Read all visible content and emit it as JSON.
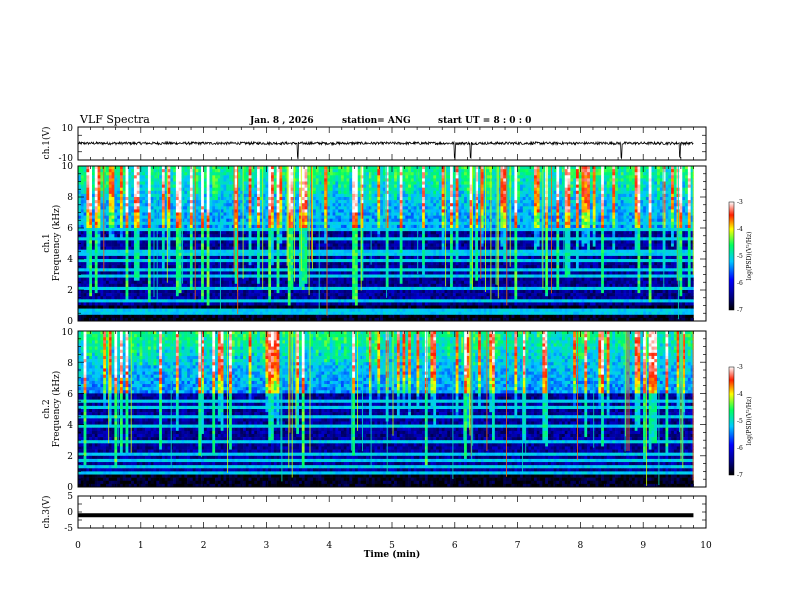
{
  "chart_data": {
    "type": "heatmap",
    "title": "VLF Spectra",
    "header": {
      "date": "Jan. 8 , 2026",
      "station": "station= ANG",
      "start": "start  UT =  8 : 0  : 0"
    },
    "xlabel": "Time  (min)",
    "xlim": [
      0,
      10
    ],
    "x_ticks": [
      "0",
      "1",
      "2",
      "3",
      "4",
      "5",
      "6",
      "7",
      "8",
      "9",
      "10"
    ],
    "panels": [
      {
        "id": "ch1-voltage",
        "ylabel": "ch.1(V)",
        "ylim": [
          -10,
          10
        ],
        "y_ticks": [
          "10",
          "-10"
        ],
        "level": 0.15
      },
      {
        "id": "ch1-spectrogram",
        "ylabel_1": "ch.1",
        "ylabel_2": "Frequency  (kHz)",
        "ylim": [
          0,
          10
        ],
        "y_ticks": [
          "0",
          "2",
          "4",
          "6",
          "8",
          "10"
        ],
        "colorbar": {
          "label": "log(PSD)(V²/Hz)",
          "range": [
            -7,
            -3
          ],
          "ticks": [
            "-3",
            "-4",
            "-5",
            "-6",
            "-7"
          ]
        }
      },
      {
        "id": "ch2-spectrogram",
        "ylabel_1": "ch.2",
        "ylabel_2": "Frequency  (kHz)",
        "ylim": [
          0,
          10
        ],
        "y_ticks": [
          "0",
          "2",
          "4",
          "6",
          "8",
          "10"
        ],
        "colorbar": {
          "label": "log(PSD)(V²/Hz)",
          "range": [
            -7,
            -3
          ],
          "ticks": [
            "-3",
            "-4",
            "-5",
            "-6",
            "-7"
          ]
        }
      },
      {
        "id": "ch3-voltage",
        "ylabel": "ch.3(V)",
        "ylim": [
          -5,
          5
        ],
        "y_ticks": [
          "5",
          "0",
          "-5"
        ],
        "level": -1.0
      }
    ],
    "data_end_min": 9.8
  }
}
